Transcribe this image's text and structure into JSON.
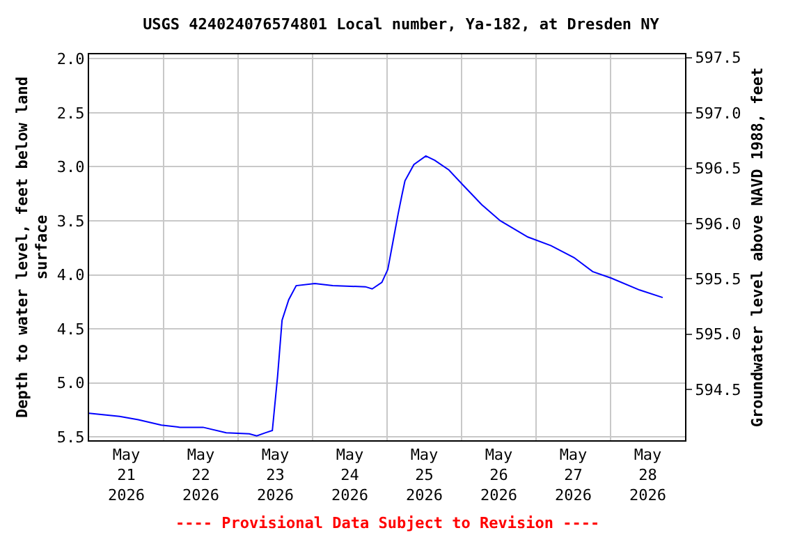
{
  "chart_data": {
    "type": "line",
    "title": "USGS 424024076574801 Local number, Ya-182, at Dresden NY",
    "ylabel": "Depth to water level, feet below land surface",
    "y2label": "Groundwater level above NAVD 1988, feet",
    "annotations": [
      "---- Provisional Data Subject to Revision ----"
    ],
    "x": [
      "2026-05-21T00:00",
      "2026-05-21T09:50",
      "2026-05-21T15:50",
      "2026-05-21T23:17",
      "2026-05-22T05:17",
      "2026-05-22T12:43",
      "2026-05-22T20:10",
      "2026-05-23T03:36",
      "2026-05-23T06:00",
      "2026-05-23T08:53",
      "2026-05-23T11:02",
      "2026-05-23T12:43",
      "2026-05-23T14:10",
      "2026-05-23T16:19",
      "2026-05-23T18:43",
      "2026-05-24T00:43",
      "2026-05-24T06:29",
      "2026-05-24T17:02",
      "2026-05-24T19:12",
      "2026-05-24T22:19",
      "2026-05-25T00:14",
      "2026-05-25T01:55",
      "2026-05-25T03:36",
      "2026-05-25T04:48",
      "2026-05-25T05:46",
      "2026-05-25T08:38",
      "2026-05-25T12:29",
      "2026-05-25T15:22",
      "2026-05-25T19:55",
      "2026-05-26T00:29",
      "2026-05-26T06:29",
      "2026-05-26T12:29",
      "2026-05-26T21:22",
      "2026-05-27T04:48",
      "2026-05-27T12:14",
      "2026-05-27T18:14",
      "2026-05-28T00:14",
      "2026-05-28T09:22",
      "2026-05-28T16:48"
    ],
    "series": [
      {
        "color": "#0000ff",
        "values": [
          5.28,
          5.31,
          5.34,
          5.39,
          5.41,
          5.41,
          5.46,
          5.47,
          5.49,
          5.46,
          5.44,
          4.94,
          4.42,
          4.23,
          4.1,
          4.08,
          4.1,
          4.11,
          4.13,
          4.07,
          3.95,
          3.69,
          3.43,
          3.26,
          3.13,
          2.98,
          2.9,
          2.94,
          3.03,
          3.17,
          3.35,
          3.5,
          3.65,
          3.73,
          3.84,
          3.97,
          4.03,
          4.14,
          4.21
        ]
      }
    ],
    "xlim": [
      "2026-05-21T00:00",
      "2026-05-29T00:00"
    ],
    "xticks": [
      {
        "value": "2026-05-21T12:00",
        "label": "May\n21\n2026"
      },
      {
        "value": "2026-05-22T00:00",
        "label": null
      },
      {
        "value": "2026-05-22T12:00",
        "label": "May\n22\n2026"
      },
      {
        "value": "2026-05-23T00:00",
        "label": null
      },
      {
        "value": "2026-05-23T12:00",
        "label": "May\n23\n2026"
      },
      {
        "value": "2026-05-24T00:00",
        "label": null
      },
      {
        "value": "2026-05-24T12:00",
        "label": "May\n24\n2026"
      },
      {
        "value": "2026-05-25T00:00",
        "label": null
      },
      {
        "value": "2026-05-25T12:00",
        "label": "May\n25\n2026"
      },
      {
        "value": "2026-05-26T00:00",
        "label": null
      },
      {
        "value": "2026-05-26T12:00",
        "label": "May\n26\n2026"
      },
      {
        "value": "2026-05-27T00:00",
        "label": null
      },
      {
        "value": "2026-05-27T12:00",
        "label": "May\n27\n2026"
      },
      {
        "value": "2026-05-28T00:00",
        "label": null
      },
      {
        "value": "2026-05-28T12:00",
        "label": "May\n28\n2026"
      }
    ],
    "ylim": [
      5.53,
      1.96
    ],
    "yticks": [
      {
        "value": 2.0,
        "label": "2.0"
      },
      2.5,
      {
        "value": 3.0,
        "label": "3.0"
      },
      3.5,
      {
        "value": 4.0,
        "label": "4.0"
      },
      4.5,
      {
        "value": 5.0,
        "label": "5.0"
      },
      5.5
    ],
    "y2lim": [
      594.04,
      597.53
    ],
    "y2ticks": [
      594.5,
      {
        "value": 595.0,
        "label": "595.0"
      },
      595.5,
      {
        "value": 596.0,
        "label": "596.0"
      },
      596.5,
      {
        "value": 597.0,
        "label": "597.0"
      },
      597.5
    ],
    "grid": true,
    "marker": "none",
    "line_style": "solid"
  }
}
